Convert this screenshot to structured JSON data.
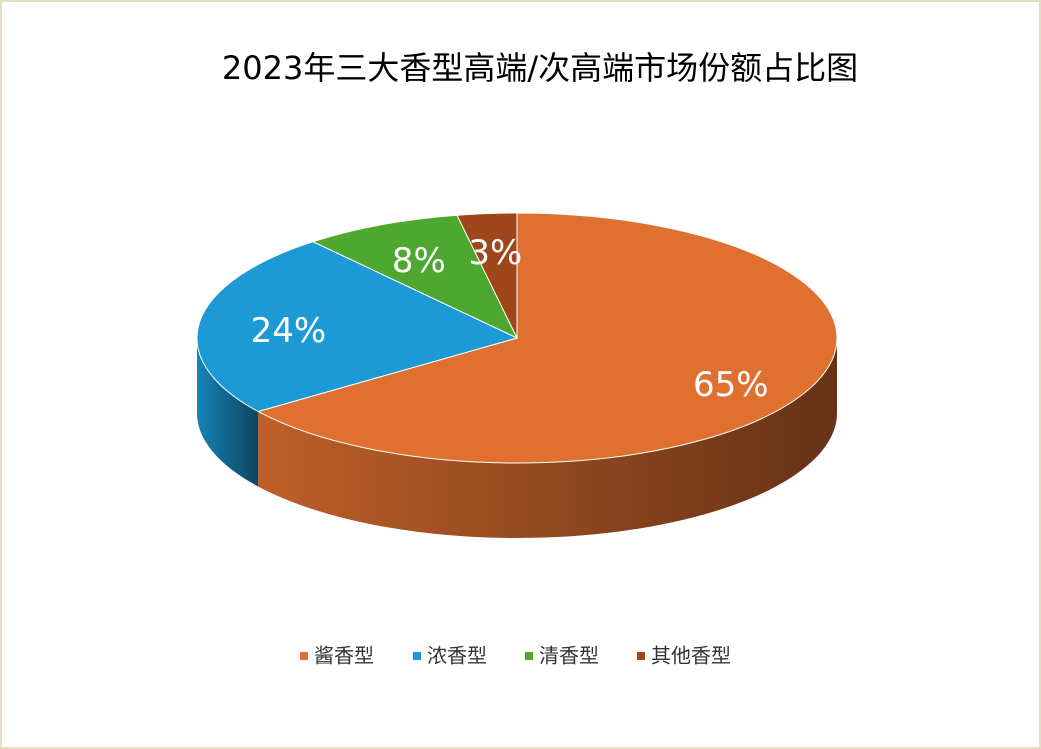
{
  "chart_data": {
    "type": "pie3d",
    "title": "2023年三大香型高端/次高端市场份额占比图",
    "categories": [
      "酱香型",
      "浓香型",
      "清香型",
      "其他香型"
    ],
    "values": [
      65,
      24,
      8,
      3
    ],
    "value_labels": [
      "65%",
      "24%",
      "8%",
      "3%"
    ],
    "colors": [
      "#e07030",
      "#1b9ad6",
      "#4ea72e",
      "#a0461c"
    ]
  }
}
